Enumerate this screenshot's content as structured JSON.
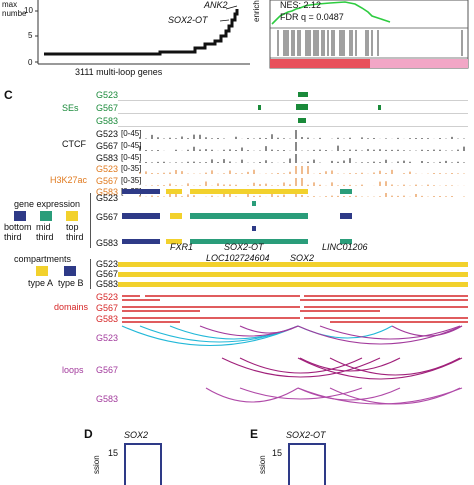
{
  "panelA": {
    "ylabel": "max\nnumbe",
    "yticks": [
      "10",
      "5",
      "0"
    ],
    "xlabel": "3111 multi-loop genes",
    "gene_labels": [
      "ANK2",
      "SOX2-OT"
    ]
  },
  "panelB": {
    "ylabel": "enrich",
    "nes": "NES: 2.12",
    "fdr": "FDR q = 0.0487"
  },
  "panelC": {
    "letter": "C",
    "ses_label": "SEs",
    "ctcf_label": "CTCF",
    "h3k27ac_label": "H3K27ac",
    "samples": [
      "G523",
      "G567",
      "G583"
    ],
    "ctcf_scale": "[0-45]",
    "h3k27ac_scale": "[0-35]",
    "gene_expression": {
      "title": "gene expression",
      "bins": [
        "bottom\nthird",
        "mid\nthird",
        "top\nthird"
      ],
      "colors": [
        "#2e3a87",
        "#2a9d7a",
        "#f2d12c"
      ]
    },
    "genes": [
      "FXR1",
      "SOX2-OT",
      "LOC102724604",
      "SOX2",
      "LINC01206"
    ],
    "compartments": {
      "title": "compartments",
      "typeA": "type A",
      "typeB": "type B",
      "colorA": "#f2d12c",
      "colorB": "#2e3a87"
    },
    "domains_label": "domains",
    "loops_label": "loops",
    "colors": {
      "se": "#1a8a3a",
      "ctcf": "#111111",
      "h3k27ac": "#e07a1f",
      "domain": "#d62728",
      "loop_g523": "#22b8d8",
      "loop_g523b": "#a23a9c",
      "loop_g567": "#a0207a",
      "loop_g583": "#b04aa8",
      "gsea_line": "#2ecc40",
      "heat_red": "#e8505b",
      "heat_pink": "#f2a6c6"
    }
  },
  "panelD": {
    "letter": "D",
    "gene": "SOX2",
    "ytick": "15",
    "ylabel": "ssion"
  },
  "panelE": {
    "letter": "E",
    "gene": "SOX2-OT",
    "ytick": "15",
    "ylabel": "ssion"
  }
}
